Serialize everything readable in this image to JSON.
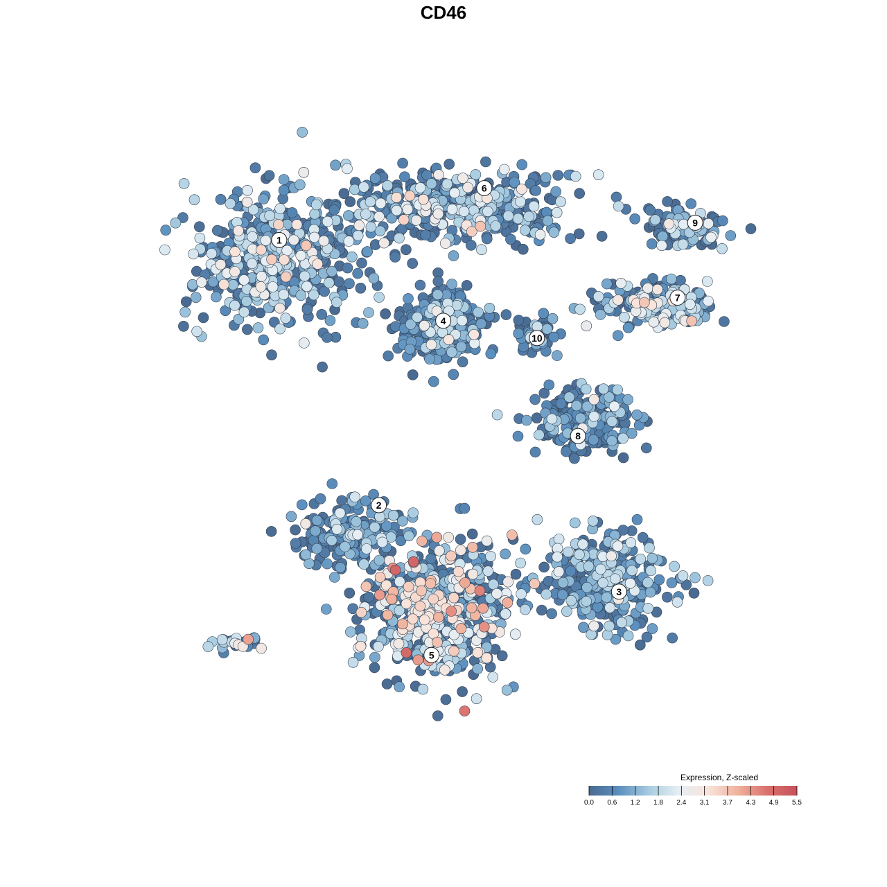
{
  "chart_data": {
    "type": "scatter",
    "title": "CD46",
    "xlabel": "",
    "ylabel": "",
    "grid": false,
    "legend": {
      "title": "Expression, Z-scaled",
      "placement": "bottom-right",
      "ticks": [
        "0.0",
        "0.6",
        "1.2",
        "1.8",
        "2.4",
        "3.1",
        "3.7",
        "4.3",
        "4.9",
        "5.5"
      ],
      "range": [
        0,
        5.5
      ]
    },
    "color_scale": [
      "#4a6a91",
      "#5b8fbe",
      "#a6cbe0",
      "#e5eef4",
      "#f8e4db",
      "#f0b29d",
      "#d9716e",
      "#c8505b"
    ],
    "cluster_labels": [
      {
        "label": "1",
        "x": -3.1,
        "y": 3.5
      },
      {
        "label": "2",
        "x": -1.4,
        "y": -1.1
      },
      {
        "label": "3",
        "x": 2.7,
        "y": -2.6
      },
      {
        "label": "4",
        "x": -0.3,
        "y": 2.1
      },
      {
        "label": "5",
        "x": -0.5,
        "y": -3.7
      },
      {
        "label": "6",
        "x": 0.4,
        "y": 4.4
      },
      {
        "label": "7",
        "x": 3.7,
        "y": 2.5
      },
      {
        "label": "8",
        "x": 2.0,
        "y": 0.1
      },
      {
        "label": "9",
        "x": 4.0,
        "y": 3.8
      },
      {
        "label": "10",
        "x": 1.3,
        "y": 1.8
      }
    ],
    "clusters": [
      {
        "id": "1",
        "cx": -3.1,
        "cy": 3.2,
        "sx": 1.1,
        "sy": 0.9,
        "n": 520,
        "mean_expr": 1.5,
        "spread_expr": 0.9
      },
      {
        "id": "2",
        "cx": -1.9,
        "cy": -1.6,
        "sx": 0.7,
        "sy": 0.5,
        "n": 200,
        "mean_expr": 1.0,
        "spread_expr": 0.8
      },
      {
        "id": "3",
        "cx": 2.5,
        "cy": -2.4,
        "sx": 0.9,
        "sy": 0.7,
        "n": 330,
        "mean_expr": 1.4,
        "spread_expr": 0.7
      },
      {
        "id": "4",
        "cx": -0.3,
        "cy": 2.0,
        "sx": 0.55,
        "sy": 0.55,
        "n": 300,
        "mean_expr": 0.9,
        "spread_expr": 0.7
      },
      {
        "id": "5",
        "cx": -0.4,
        "cy": -2.9,
        "sx": 1.0,
        "sy": 0.9,
        "n": 650,
        "mean_expr": 2.0,
        "spread_expr": 1.1
      },
      {
        "id": "6",
        "cx": 0.0,
        "cy": 4.1,
        "sx": 1.6,
        "sy": 0.5,
        "n": 430,
        "mean_expr": 1.5,
        "spread_expr": 0.8
      },
      {
        "id": "7",
        "cx": 3.4,
        "cy": 2.4,
        "sx": 0.8,
        "sy": 0.35,
        "n": 190,
        "mean_expr": 1.6,
        "spread_expr": 0.8
      },
      {
        "id": "8",
        "cx": 2.1,
        "cy": 0.4,
        "sx": 0.7,
        "sy": 0.5,
        "n": 220,
        "mean_expr": 0.9,
        "spread_expr": 0.7
      },
      {
        "id": "9",
        "cx": 3.8,
        "cy": 3.7,
        "sx": 0.6,
        "sy": 0.3,
        "n": 100,
        "mean_expr": 1.3,
        "spread_expr": 0.7
      },
      {
        "id": "10",
        "cx": 1.3,
        "cy": 1.9,
        "sx": 0.3,
        "sy": 0.3,
        "n": 60,
        "mean_expr": 0.8,
        "spread_expr": 0.6
      },
      {
        "id": "outlier-group",
        "cx": -3.8,
        "cy": -3.5,
        "sx": 0.4,
        "sy": 0.12,
        "n": 28,
        "mean_expr": 2.2,
        "spread_expr": 1.0
      }
    ],
    "xlim": [
      -5.5,
      5.5
    ],
    "ylim": [
      -5.5,
      5.5
    ]
  }
}
